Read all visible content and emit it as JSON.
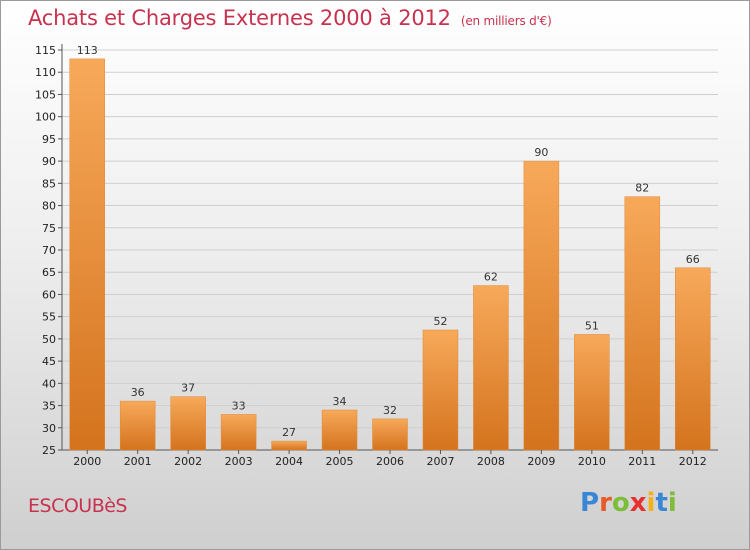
{
  "header": {
    "title": "Achats et Charges Externes 2000 à 2012",
    "subtitle": "(en milliers d'€)"
  },
  "footer": {
    "town": "ESCOUBèS",
    "logo_text": "Proxiti",
    "logo_colors": [
      "#3a86d6",
      "#e85a2a",
      "#7cbd3a",
      "#e83030",
      "#f2b21c",
      "#3a86d6",
      "#7cbd3a"
    ]
  },
  "chart_data": {
    "type": "bar",
    "title": "Achats et Charges Externes 2000 à 2012",
    "subtitle": "(en milliers d'€)",
    "categories": [
      "2000",
      "2001",
      "2002",
      "2003",
      "2004",
      "2005",
      "2006",
      "2007",
      "2008",
      "2009",
      "2010",
      "2011",
      "2012"
    ],
    "values": [
      113,
      36,
      37,
      33,
      27,
      34,
      32,
      52,
      62,
      90,
      51,
      82,
      66
    ],
    "data_labels": [
      "113",
      "36",
      "37",
      "33",
      "27",
      "34",
      "32",
      "52",
      "62",
      "90",
      "51",
      "82",
      "66"
    ],
    "ylim": [
      25,
      115
    ],
    "yticks": [
      25,
      30,
      35,
      40,
      45,
      50,
      55,
      60,
      65,
      70,
      75,
      80,
      85,
      90,
      95,
      100,
      105,
      110,
      115
    ],
    "grid": true,
    "bar_color_top": "#f7a95a",
    "bar_color_bottom": "#d4731e",
    "xlabel": "",
    "ylabel": ""
  }
}
